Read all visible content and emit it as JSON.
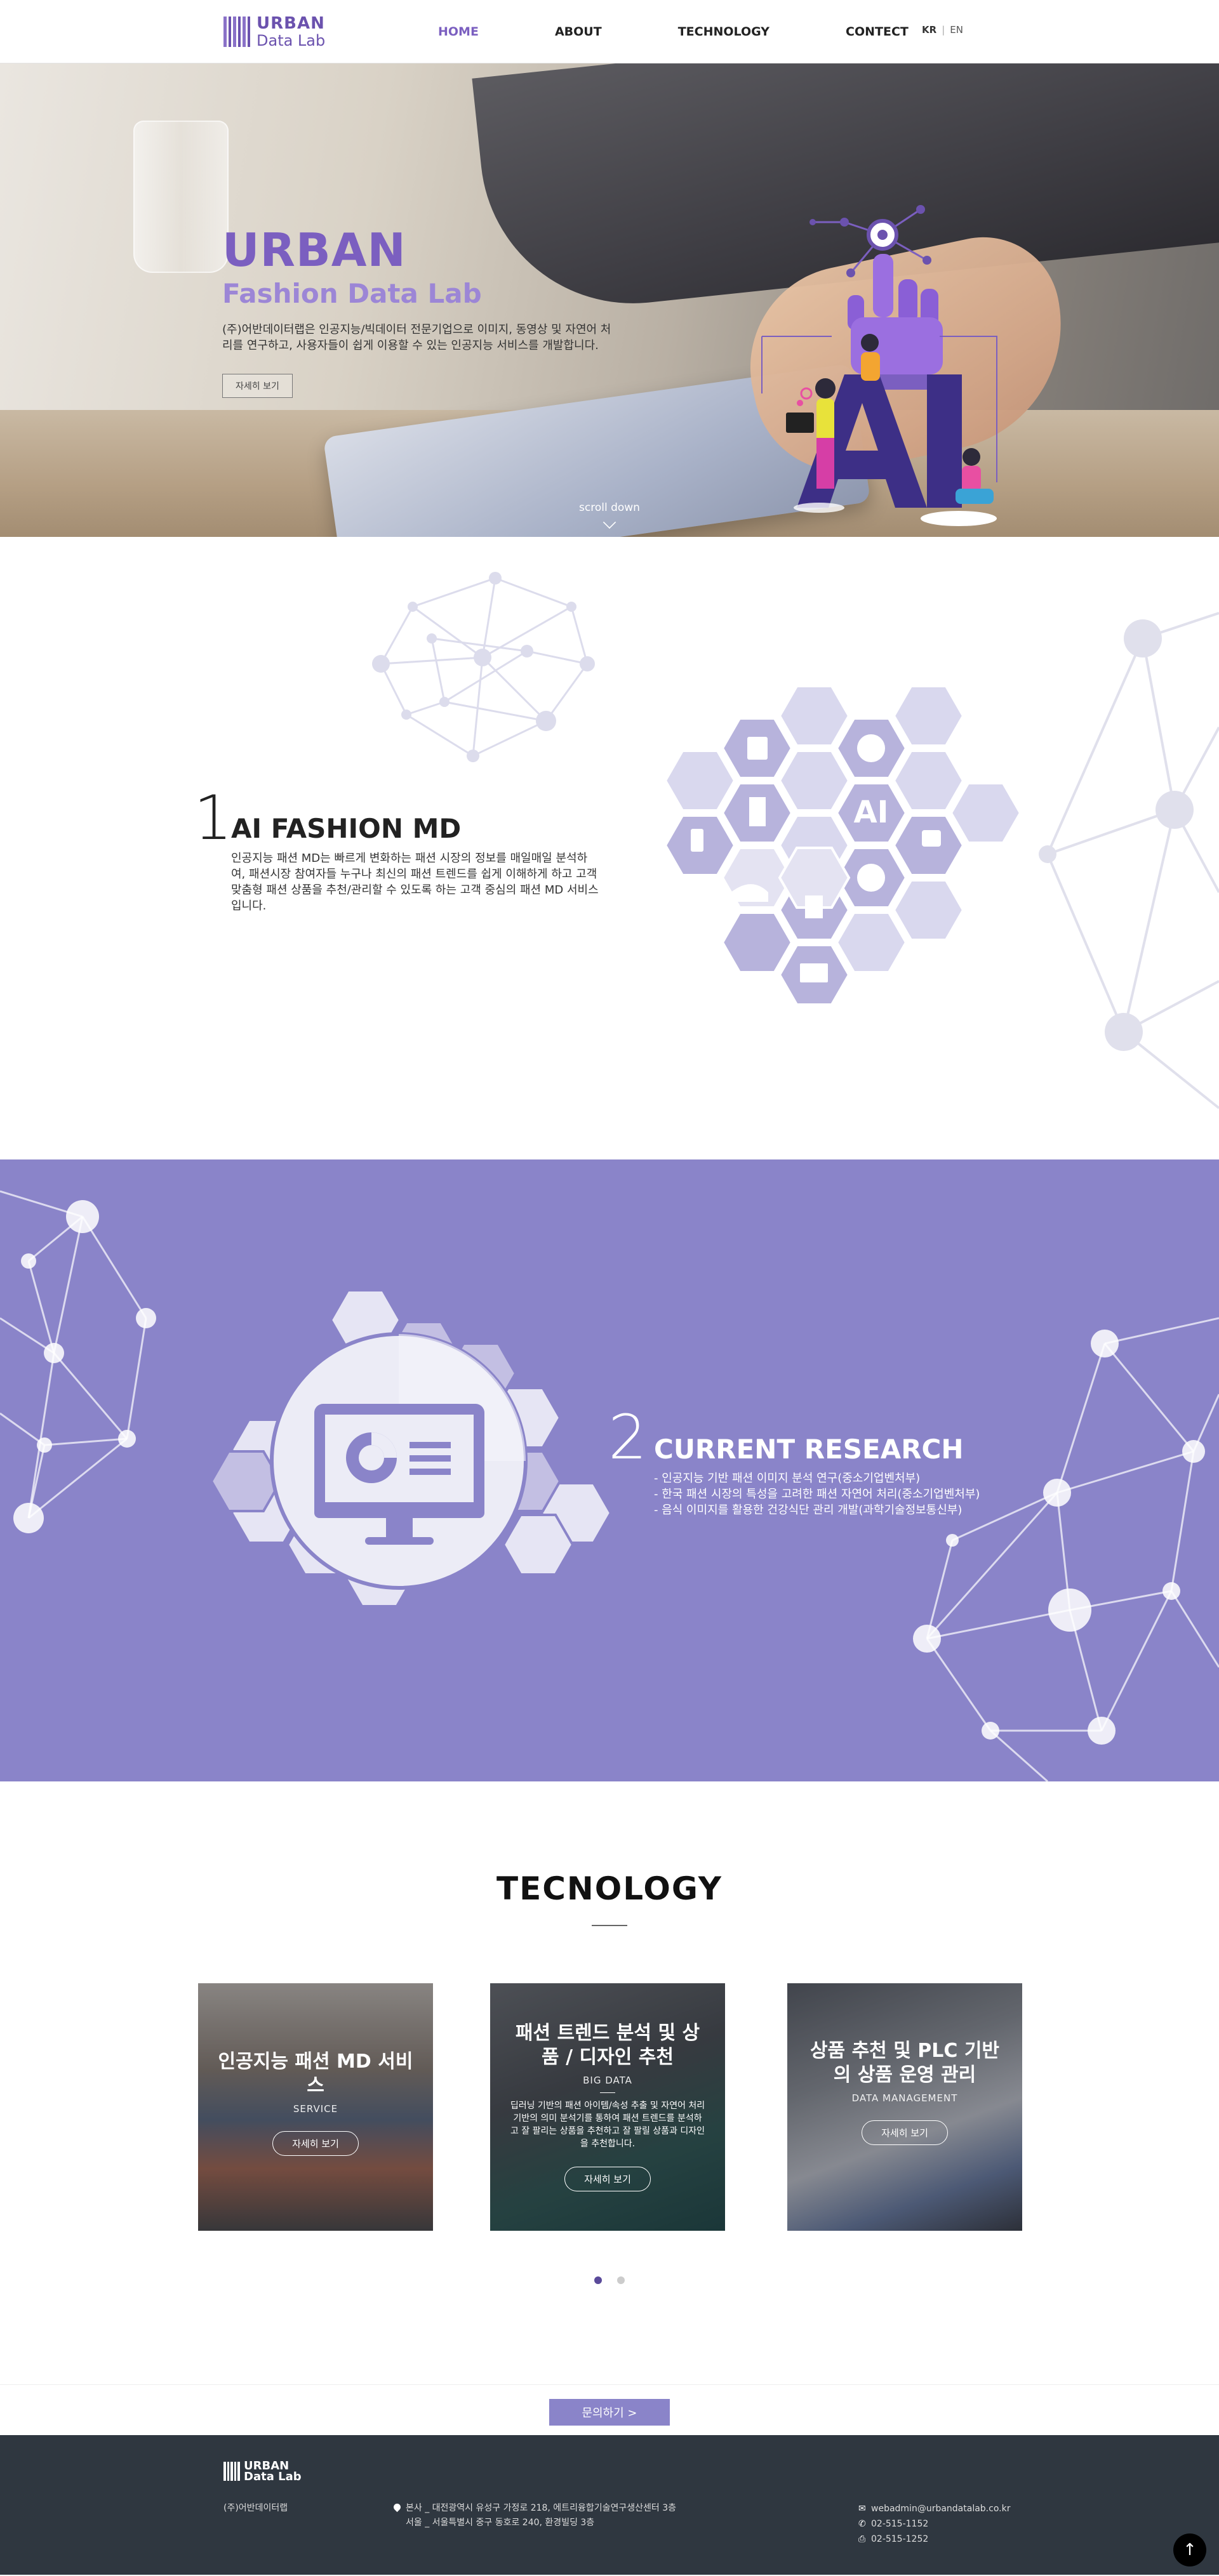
{
  "header": {
    "logo_line1": "URBAN",
    "logo_line2": "Data Lab",
    "nav": [
      "HOME",
      "ABOUT",
      "TECHNOLOGY",
      "CONTECT"
    ],
    "lang_kr": "KR",
    "lang_sep": "|",
    "lang_en": "EN"
  },
  "hero": {
    "title1": "URBAN",
    "title2": "Fashion Data Lab",
    "description": "(주)어반데이터랩은 인공지능/빅데이터 전문기업으로 이미지, 동영상 및 자연어 처리를 연구하고, 사용자들이 쉽게 이용할 수 있는 인공지능 서비스를 개발합니다.",
    "button": "자세히 보기",
    "scroll": "scroll down"
  },
  "section1": {
    "number": "1",
    "title": "AI FASHION MD",
    "description": "인공지능 패션 MD는 빠르게 변화하는 패션 시장의 정보를 매일매일 분석하여, 패션시장 참여자들 누구나 최신의 패션 트렌드를 쉽게 이해하게 하고 고객 맞춤형 패션 상품을 추천/관리할 수 있도록 하는 고객 중심의 패션 MD 서비스 입니다.",
    "ai_label": "AI"
  },
  "section2": {
    "number": "2",
    "title": "CURRENT RESEARCH",
    "items": [
      "- 인공지능 기반 패션 이미지 분석 연구(중소기업벤처부)",
      "- 한국 패션 시장의 특성을 고려한 패션 자연어 처리(중소기업벤처부)",
      "- 음식 이미지를 활용한 건강식단 관리 개발(과학기술정보통신부)"
    ]
  },
  "technology": {
    "title": "TECNOLOGY",
    "cards": [
      {
        "title": "인공지능 패션 MD 서비스",
        "sub": "SERVICE",
        "desc": "",
        "button": "자세히 보기"
      },
      {
        "title": "패션 트렌드 분석 및 상품 / 디자인 추천",
        "sub": "BIG DATA",
        "desc": "딥러닝 기반의 패션 아이템/속성 추출 및 자연어 처리 기반의 의미 분석기를 통하여 패션 트렌드를 분석하고 잘 팔리는 상품을 추천하고 잘 팔릴 상품과 디자인을 추천합니다.",
        "button": "자세히 보기"
      },
      {
        "title": "상품 추천 및 PLC 기반의 상품 운영 관리",
        "sub": "DATA MANAGEMENT",
        "desc": "",
        "button": "자세히 보기"
      }
    ]
  },
  "contact": {
    "button": "문의하기 >"
  },
  "footer": {
    "logo_line1": "URBAN",
    "logo_line2": "Data Lab",
    "company": "(주)어반데이터랩",
    "address1": "본사 _ 대전광역시 유성구 가정로 218, 에트리융합기술연구생산센터 3층",
    "address2": "서울 _ 서울특별시 중구 동호로 240, 환경빌딩 3층",
    "email": "webadmin@urbandatalab.co.kr",
    "phone": "02-515-1152",
    "fax": "02-515-1252"
  },
  "colors": {
    "accent": "#7b5fc0",
    "section2_bg": "#8a84c9",
    "hex": "#b7b3dc",
    "footer_bg": "#2f3740"
  }
}
